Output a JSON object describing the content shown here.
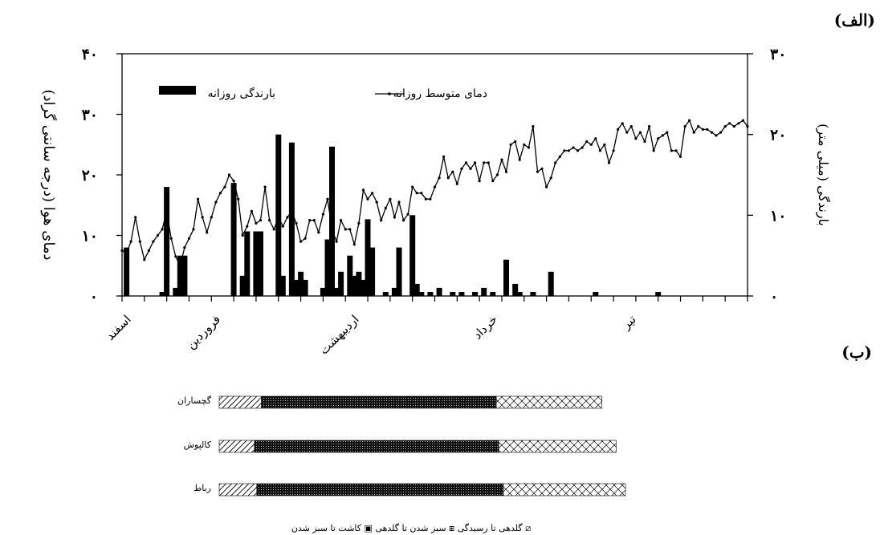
{
  "panel_labels": {
    "a": "(الف)",
    "b": "(ب)"
  },
  "chart_data": [
    {
      "type": "bar+line",
      "title": "",
      "ylabel_left": "دمای هوا (درجه سانتی گراد)",
      "ylabel_right": "بارندگی (میلی متر)",
      "yticks_left": [
        "۰",
        "۱۰",
        "۲۰",
        "۳۰",
        "۴۰"
      ],
      "yticks_right": [
        "۰",
        "۱۰",
        "۲۰",
        "۳۰"
      ],
      "ylim_left": [
        0,
        40
      ],
      "ylim_right": [
        0,
        30
      ],
      "xlim_days": [
        0,
        140
      ],
      "x_category_labels": [
        {
          "label": "اسفند",
          "day": 0
        },
        {
          "label": "فروردین",
          "day": 20
        },
        {
          "label": "اردیبهشت",
          "day": 51
        },
        {
          "label": "خرداد",
          "day": 82
        },
        {
          "label": "تیر",
          "day": 113
        }
      ],
      "legend": {
        "position": "top",
        "rain_label": "بارندگی روزانه",
        "temp_label": "دمای متوسط روزانه"
      },
      "series": [
        {
          "name": "دمای متوسط روزانه",
          "type": "line",
          "axis": "left",
          "x_days": [
            0,
            1,
            2,
            3,
            4,
            5,
            6,
            7,
            8,
            9,
            10,
            11,
            12,
            13,
            14,
            15,
            16,
            17,
            18,
            19,
            20,
            21,
            22,
            23,
            24,
            25,
            26,
            27,
            28,
            29,
            30,
            31,
            32,
            33,
            34,
            35,
            36,
            37,
            38,
            39,
            40,
            41,
            42,
            43,
            44,
            45,
            46,
            47,
            48,
            49,
            50,
            51,
            52,
            53,
            54,
            55,
            56,
            57,
            58,
            59,
            60,
            61,
            62,
            63,
            64,
            65,
            66,
            67,
            68,
            69,
            70,
            71,
            72,
            73,
            74,
            75,
            76,
            77,
            78,
            79,
            80,
            81,
            82,
            83,
            84,
            85,
            86,
            87,
            88,
            89,
            90,
            91,
            92,
            93,
            94,
            95,
            96,
            97,
            98,
            99,
            100,
            101,
            102,
            103,
            104,
            105,
            106,
            107,
            108,
            109,
            110,
            111,
            112,
            113,
            114,
            115,
            116,
            117,
            118,
            119,
            120,
            121,
            122,
            123,
            124,
            125,
            126,
            127,
            128,
            129,
            130,
            131,
            132,
            133,
            134,
            135,
            136,
            137,
            138,
            139,
            140
          ],
          "values": [
            7.5,
            7,
            9,
            13,
            9,
            6,
            7.5,
            9,
            10,
            11,
            14,
            9.5,
            6.5,
            5,
            8,
            9.5,
            11,
            16,
            13,
            10.5,
            13,
            15.5,
            17,
            18,
            20,
            19,
            16,
            10,
            11.5,
            14,
            12,
            12.5,
            18,
            12.5,
            11,
            13,
            11.5,
            13,
            14,
            12,
            9,
            9.5,
            12.5,
            12.5,
            10.5,
            13.5,
            16,
            11,
            9,
            12.5,
            11,
            11,
            8.5,
            12,
            17.5,
            16,
            17,
            15.5,
            12.5,
            14.5,
            16,
            13,
            15.5,
            12.5,
            13.5,
            18,
            17,
            17,
            16,
            16,
            18,
            19.5,
            23,
            19.5,
            20.5,
            18.5,
            21,
            22,
            21,
            22,
            19,
            22,
            22,
            19,
            20,
            22.5,
            20.5,
            25,
            25.5,
            22.5,
            25,
            24.5,
            28,
            20.5,
            21,
            18,
            19.5,
            22,
            23,
            24,
            24,
            24.5,
            24,
            24.5,
            25.5,
            25,
            26,
            24,
            25,
            22,
            24,
            27.5,
            28.5,
            27,
            28,
            26,
            27,
            25.5,
            28,
            24,
            26,
            26.5,
            27,
            24,
            24,
            23,
            28,
            29,
            27,
            28,
            27.5,
            27.5,
            27,
            26.5,
            27,
            28,
            28.5,
            28,
            28.5,
            29,
            28
          ]
        },
        {
          "name": "بارندگی روزانه",
          "type": "bar",
          "axis": "right",
          "x_days": [
            1,
            9,
            10,
            12,
            13,
            14,
            25,
            27,
            28,
            30,
            31,
            35,
            36,
            38,
            39,
            40,
            41,
            45,
            46,
            47,
            48,
            49,
            51,
            52,
            53,
            54,
            55,
            56,
            59,
            61,
            62,
            65,
            66,
            67,
            69,
            71,
            74,
            76,
            79,
            81,
            83,
            86,
            88,
            89,
            92,
            96,
            106,
            120
          ],
          "values": [
            6,
            0.5,
            13.5,
            1,
            5,
            5,
            14,
            2.5,
            8,
            8,
            8,
            20,
            2.5,
            19,
            2,
            3,
            2,
            1,
            7,
            18.5,
            1,
            3,
            5,
            2.5,
            3,
            2,
            9.5,
            6,
            0.5,
            1,
            6,
            10,
            1.5,
            0.5,
            0.5,
            1,
            0.5,
            0.5,
            0.5,
            1,
            0.5,
            4.5,
            1.5,
            0.5,
            0.5,
            3,
            0.5,
            0.5
          ]
        }
      ]
    },
    {
      "type": "bar",
      "stacked": true,
      "orientation": "horizontal",
      "title": "",
      "xlim_days": [
        0,
        140
      ],
      "categories": [
        "گچساران",
        "کالپوش",
        "رباط"
      ],
      "series": [
        {
          "name": "کاشت تا سبز شدن",
          "pattern": "hatch",
          "values": [
            9,
            7.5,
            8
          ]
        },
        {
          "name": "سبز شدن تا گلدهی",
          "pattern": "dense-dots",
          "values": [
            50,
            52,
            52.5
          ]
        },
        {
          "name": "گلدهی تا رسیدگی",
          "pattern": "crosshatch",
          "values": [
            22.5,
            25,
            26
          ]
        }
      ],
      "legend": {
        "position": "bottom",
        "text": "گلدهی تا رسیدگی ⧆ سبز شدن تا گلدهی ▣ کاشت تا سبز شدن ⧄"
      }
    }
  ]
}
